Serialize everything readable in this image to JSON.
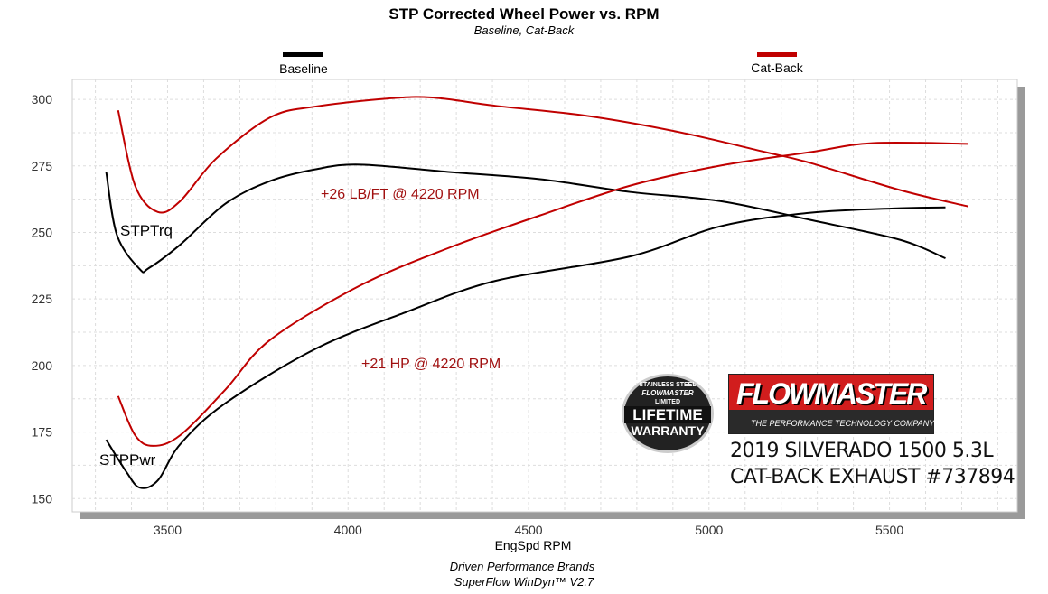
{
  "chart_data": {
    "type": "line",
    "title": "STP Corrected Wheel Power vs. RPM",
    "subtitle": "Baseline, Cat-Back",
    "xlabel": "EngSpd  RPM",
    "ylabel": "",
    "xlim": [
      3236,
      5854
    ],
    "ylim": [
      145,
      307.5
    ],
    "xticks": [
      3500,
      4000,
      4500,
      5000,
      5500
    ],
    "yticks": [
      150,
      175,
      200,
      225,
      250,
      275,
      300
    ],
    "grid": true,
    "legend": "top",
    "legend_entries": [
      {
        "name": "Baseline",
        "color": "#000000"
      },
      {
        "name": "Cat-Back",
        "color": "#c00000"
      }
    ],
    "curve_labels": {
      "torque": "STPTrq",
      "power": "STPPwr"
    },
    "annotations": [
      "+26 LB/FT @ 4220 RPM",
      "+21 HP @ 4220 RPM"
    ],
    "series": [
      {
        "name": "Cat-Back",
        "measure": "STPTrq",
        "color": "#c00000",
        "x": [
          3363,
          3410,
          3473,
          3535,
          3635,
          3784,
          3909,
          4108,
          4233,
          4408,
          4658,
          4907,
          5156,
          5281,
          5530,
          5717
        ],
        "y": [
          295.9,
          267.6,
          257.7,
          261.8,
          277.8,
          293.2,
          297.3,
          300.3,
          300.7,
          297.6,
          293.9,
          288,
          280.2,
          276.1,
          265.9,
          259.8
        ]
      },
      {
        "name": "Baseline",
        "measure": "STPTrq",
        "color": "#000000",
        "x": [
          3330,
          3360,
          3423,
          3448,
          3535,
          3660,
          3784,
          3909,
          4034,
          4283,
          4532,
          4782,
          5031,
          5281,
          5530,
          5655
        ],
        "y": [
          272.7,
          248.9,
          236.2,
          236.6,
          245.4,
          260.8,
          269.3,
          273.7,
          275.5,
          272.7,
          270,
          265.2,
          261.8,
          254.7,
          247.2,
          240.3
        ]
      },
      {
        "name": "Cat-Back",
        "measure": "STPPwr",
        "color": "#c00000",
        "x": [
          3363,
          3410,
          3460,
          3535,
          3660,
          3784,
          4034,
          4283,
          4532,
          4782,
          5031,
          5281,
          5455,
          5717
        ],
        "y": [
          188.5,
          173.8,
          169.8,
          173.8,
          190.9,
          209.6,
          230.1,
          244.4,
          256.4,
          267.6,
          275.1,
          280.2,
          283.6,
          283.3
        ]
      },
      {
        "name": "Baseline",
        "measure": "STPPwr",
        "color": "#000000",
        "x": [
          3330,
          3385,
          3423,
          3473,
          3535,
          3660,
          3909,
          4158,
          4408,
          4782,
          5031,
          5281,
          5530,
          5655
        ],
        "y": [
          172.1,
          160.2,
          154.1,
          156.8,
          170.4,
          185.8,
          206.2,
          219.9,
          231.8,
          241,
          252.3,
          257.4,
          259.1,
          259.4
        ]
      }
    ]
  },
  "footer": {
    "line1": "Driven Performance Brands",
    "line2": "SuperFlow WinDyn™  V2.7"
  },
  "branding": {
    "logo_name": "FLOWMASTER",
    "logo_tagline": "THE PERFORMANCE TECHNOLOGY COMPANY",
    "warranty_badge": [
      "STAINLESS STEEL",
      "FLOWMASTER",
      "LIMITED",
      "LIFETIME",
      "WARRANTY"
    ],
    "vehicle": "2019 SILVERADO 1500 5.3L",
    "product": "CAT-BACK EXHAUST #737894"
  }
}
